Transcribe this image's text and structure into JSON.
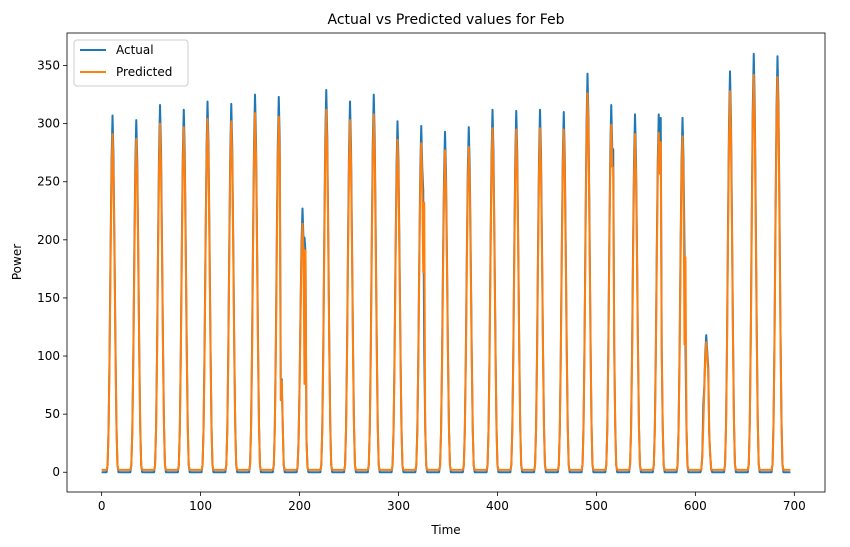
{
  "chart_data": {
    "type": "line",
    "title": "Actual vs Predicted values for Feb",
    "xlabel": "Time",
    "ylabel": "Power",
    "xlim": [
      -35,
      731
    ],
    "ylim": [
      -17,
      378
    ],
    "xticks": [
      0,
      100,
      200,
      300,
      400,
      500,
      600,
      700
    ],
    "yticks": [
      0,
      50,
      100,
      150,
      200,
      250,
      300,
      350
    ],
    "grid": false,
    "legend_position": "top-left",
    "period": 24,
    "length": 697,
    "series": [
      {
        "name": "Actual",
        "color": "#1f77b4",
        "baseline": 0,
        "days": [
          {
            "peak": 307,
            "center": 11
          },
          {
            "peak": 303,
            "center": 35
          },
          {
            "peak": 316,
            "center": 59
          },
          {
            "peak": 312,
            "center": 83
          },
          {
            "peak": 319,
            "center": 107
          },
          {
            "peak": 317,
            "center": 131
          },
          {
            "peak": 325,
            "center": 155
          },
          {
            "peak": 323,
            "center": 179,
            "extra": [
              [
                181,
                81
              ],
              [
                182,
                80
              ]
            ]
          },
          {
            "peak": 227,
            "center": 203,
            "extra": [
              [
                205,
                202
              ],
              [
                206,
                190
              ]
            ]
          },
          {
            "peak": 329,
            "center": 227
          },
          {
            "peak": 319,
            "center": 251
          },
          {
            "peak": 325,
            "center": 275
          },
          {
            "peak": 302,
            "center": 299
          },
          {
            "peak": 298,
            "center": 323,
            "extra": [
              [
                325,
                243
              ]
            ]
          },
          {
            "peak": 293,
            "center": 347
          },
          {
            "peak": 297,
            "center": 371
          },
          {
            "peak": 312,
            "center": 395
          },
          {
            "peak": 311,
            "center": 419
          },
          {
            "peak": 312,
            "center": 443
          },
          {
            "peak": 310,
            "center": 467
          },
          {
            "peak": 343,
            "center": 491
          },
          {
            "peak": 316,
            "center": 515,
            "extra": [
              [
                517,
                278
              ]
            ]
          },
          {
            "peak": 308,
            "center": 539
          },
          {
            "peak": 308,
            "center": 563,
            "extra": [
              [
                565,
                305
              ]
            ]
          },
          {
            "peak": 305,
            "center": 587,
            "extra": [
              [
                589,
                196
              ]
            ]
          },
          {
            "peak": 118,
            "center": 611,
            "extra": [
              [
                608,
                58
              ],
              [
                613,
                91
              ],
              [
                614,
                33
              ]
            ]
          },
          {
            "peak": 345,
            "center": 635
          },
          {
            "peak": 360,
            "center": 659
          },
          {
            "peak": 358,
            "center": 683
          }
        ]
      },
      {
        "name": "Predicted",
        "color": "#ff7f0e",
        "baseline": 2,
        "days": [
          {
            "peak": 291,
            "center": 11
          },
          {
            "peak": 287,
            "center": 35
          },
          {
            "peak": 300,
            "center": 59
          },
          {
            "peak": 297,
            "center": 83
          },
          {
            "peak": 304,
            "center": 107
          },
          {
            "peak": 302,
            "center": 131
          },
          {
            "peak": 309,
            "center": 155
          },
          {
            "peak": 306,
            "center": 179,
            "extra": [
              [
                181,
                62
              ],
              [
                182,
                78
              ]
            ]
          },
          {
            "peak": 214,
            "center": 203,
            "extra": [
              [
                205,
                76
              ],
              [
                206,
                191
              ]
            ]
          },
          {
            "peak": 312,
            "center": 227
          },
          {
            "peak": 303,
            "center": 251
          },
          {
            "peak": 308,
            "center": 275
          },
          {
            "peak": 286,
            "center": 299
          },
          {
            "peak": 283,
            "center": 323,
            "extra": [
              [
                325,
                172
              ],
              [
                326,
                232
              ]
            ]
          },
          {
            "peak": 277,
            "center": 347
          },
          {
            "peak": 280,
            "center": 371
          },
          {
            "peak": 296,
            "center": 395
          },
          {
            "peak": 295,
            "center": 419
          },
          {
            "peak": 296,
            "center": 443
          },
          {
            "peak": 295,
            "center": 467
          },
          {
            "peak": 326,
            "center": 491
          },
          {
            "peak": 299,
            "center": 515,
            "extra": [
              [
                517,
                262
              ]
            ]
          },
          {
            "peak": 291,
            "center": 539
          },
          {
            "peak": 292,
            "center": 563,
            "extra": [
              [
                565,
                284
              ]
            ]
          },
          {
            "peak": 289,
            "center": 587,
            "extra": [
              [
                589,
                110
              ],
              [
                590,
                185
              ]
            ]
          },
          {
            "peak": 112,
            "center": 611,
            "extra": [
              [
                608,
                40
              ],
              [
                613,
                85
              ],
              [
                614,
                35
              ]
            ]
          },
          {
            "peak": 328,
            "center": 635
          },
          {
            "peak": 342,
            "center": 659
          },
          {
            "peak": 340,
            "center": 683
          }
        ]
      }
    ]
  }
}
